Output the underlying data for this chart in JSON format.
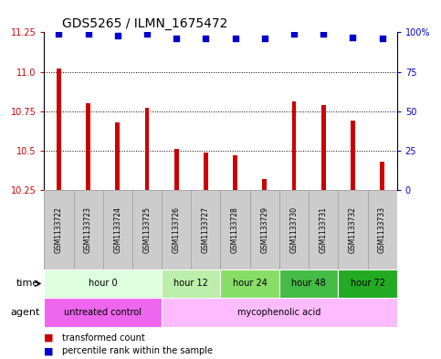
{
  "title": "GDS5265 / ILMN_1675472",
  "samples": [
    "GSM1133722",
    "GSM1133723",
    "GSM1133724",
    "GSM1133725",
    "GSM1133726",
    "GSM1133727",
    "GSM1133728",
    "GSM1133729",
    "GSM1133730",
    "GSM1133731",
    "GSM1133732",
    "GSM1133733"
  ],
  "bar_values": [
    11.02,
    10.8,
    10.68,
    10.77,
    10.51,
    10.49,
    10.47,
    10.32,
    10.81,
    10.79,
    10.69,
    10.43
  ],
  "dot_values": [
    99,
    99,
    98,
    99,
    96,
    96,
    96,
    96,
    99,
    99,
    97,
    96
  ],
  "ymin": 10.25,
  "ymax": 11.25,
  "y_ticks": [
    10.25,
    10.5,
    10.75,
    11.0,
    11.25
  ],
  "y2min": 0,
  "y2max": 100,
  "y2_ticks": [
    0,
    25,
    50,
    75,
    100
  ],
  "y2_tick_labels": [
    "0",
    "25",
    "50",
    "75",
    "100%"
  ],
  "bar_color": "#cc0000",
  "dot_color": "#0000cc",
  "time_groups": [
    {
      "label": "hour 0",
      "start": 0,
      "end": 4,
      "color": "#ddffdd"
    },
    {
      "label": "hour 12",
      "start": 4,
      "end": 6,
      "color": "#bbeeaa"
    },
    {
      "label": "hour 24",
      "start": 6,
      "end": 8,
      "color": "#88dd66"
    },
    {
      "label": "hour 48",
      "start": 8,
      "end": 10,
      "color": "#44bb44"
    },
    {
      "label": "hour 72",
      "start": 10,
      "end": 12,
      "color": "#22aa22"
    }
  ],
  "agent_groups": [
    {
      "label": "untreated control",
      "start": 0,
      "end": 4,
      "color": "#ee66ee"
    },
    {
      "label": "mycophenolic acid",
      "start": 4,
      "end": 12,
      "color": "#ffbbff"
    }
  ],
  "legend_bar_label": "transformed count",
  "legend_dot_label": "percentile rank within the sample",
  "title_fontsize": 10,
  "axis_label_color_left": "#cc0000",
  "axis_label_color_right": "#0000cc",
  "sample_cell_color": "#cccccc",
  "sample_cell_border": "#999999"
}
